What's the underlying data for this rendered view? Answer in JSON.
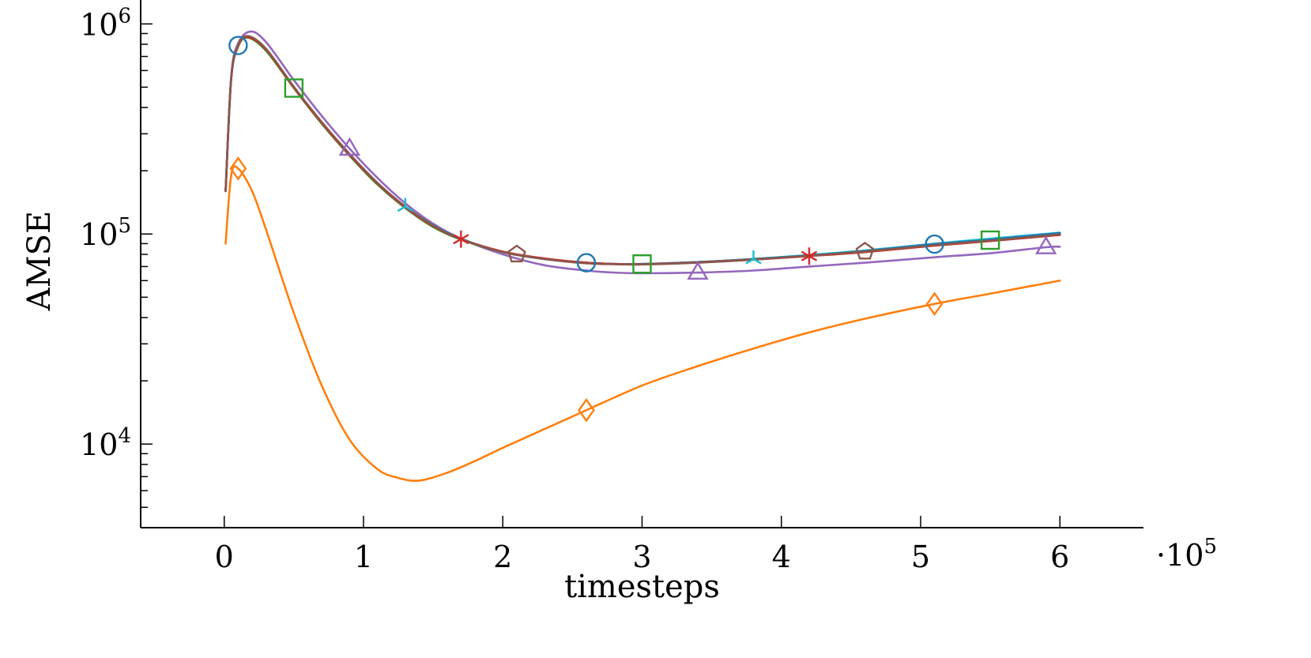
{
  "chart_data": {
    "type": "line",
    "xlabel": "timesteps",
    "ylabel": "AMSE",
    "x_multiplier_label": "·10",
    "x_multiplier_exponent": "5",
    "xscale": "linear",
    "yscale": "log",
    "xlim": [
      -0.6,
      6.6
    ],
    "ylim": [
      4000,
      1300000
    ],
    "grid": false,
    "legend": "none",
    "x_ticks": [
      {
        "value": 0,
        "label": "0"
      },
      {
        "value": 1,
        "label": "1"
      },
      {
        "value": 2,
        "label": "2"
      },
      {
        "value": 3,
        "label": "3"
      },
      {
        "value": 4,
        "label": "4"
      },
      {
        "value": 5,
        "label": "5"
      },
      {
        "value": 6,
        "label": "6"
      }
    ],
    "y_major_ticks": [
      {
        "value": 10000,
        "base": "10",
        "exp": "4"
      },
      {
        "value": 100000,
        "base": "10",
        "exp": "5"
      },
      {
        "value": 1000000,
        "base": "10",
        "exp": "6"
      }
    ],
    "y_minor_ticks": [
      5000,
      6000,
      7000,
      8000,
      9000,
      20000,
      30000,
      40000,
      50000,
      60000,
      70000,
      80000,
      90000,
      200000,
      300000,
      400000,
      500000,
      600000,
      700000,
      800000,
      900000
    ],
    "series": [
      {
        "color": "#1f77b4",
        "marker": "circle",
        "x": [
          0.01,
          0.05,
          0.1,
          0.17,
          0.3,
          0.5,
          0.7,
          0.9,
          1.1,
          1.3,
          1.5,
          1.7,
          2.0,
          2.3,
          2.6,
          2.8,
          3.0,
          3.4,
          3.8,
          4.2,
          4.6,
          5.1,
          5.5,
          6.0
        ],
        "y": [
          160000,
          550000,
          790000,
          870000,
          760000,
          500000,
          340000,
          240000,
          175000,
          135000,
          110000,
          95000,
          82000,
          76000,
          73000,
          72000,
          72000,
          73500,
          76000,
          79000,
          83000,
          89500,
          94000,
          101000
        ],
        "marker_x": [
          0.1,
          2.6,
          5.1
        ]
      },
      {
        "color": "#ff7f0e",
        "marker": "diamond",
        "x": [
          0.01,
          0.05,
          0.1,
          0.2,
          0.3,
          0.5,
          0.7,
          0.9,
          1.1,
          1.25,
          1.4,
          1.6,
          1.8,
          2.0,
          2.3,
          2.6,
          3.0,
          3.4,
          3.8,
          4.2,
          4.6,
          5.1,
          5.5,
          6.0
        ],
        "y": [
          90000,
          190000,
          205000,
          160000,
          105000,
          42000,
          19000,
          10500,
          7600,
          6900,
          6700,
          7300,
          8300,
          9600,
          11800,
          14500,
          19000,
          23500,
          28500,
          34000,
          39500,
          46500,
          52000,
          60000
        ],
        "marker_x": [
          0.1,
          2.6,
          5.1
        ]
      },
      {
        "color": "#2ca02c",
        "marker": "square",
        "x": [
          0.01,
          0.05,
          0.1,
          0.17,
          0.3,
          0.5,
          0.7,
          0.9,
          1.1,
          1.3,
          1.5,
          1.7,
          2.0,
          2.3,
          2.6,
          2.8,
          3.0,
          3.4,
          3.8,
          4.2,
          4.6,
          5.1,
          5.5,
          6.0
        ],
        "y": [
          160000,
          545000,
          780000,
          860000,
          745000,
          495000,
          335000,
          236000,
          172000,
          133000,
          108000,
          94000,
          82000,
          76000,
          73000,
          72000,
          72000,
          73500,
          76000,
          79000,
          83000,
          89000,
          93500,
          100000
        ],
        "marker_x": [
          0.5,
          3.0,
          5.5
        ]
      },
      {
        "color": "#9467bd",
        "marker": "triangle",
        "x": [
          0.01,
          0.05,
          0.1,
          0.19,
          0.3,
          0.5,
          0.7,
          0.9,
          1.1,
          1.3,
          1.5,
          1.7,
          2.0,
          2.3,
          2.6,
          2.8,
          3.0,
          3.4,
          3.8,
          4.2,
          4.6,
          5.1,
          5.5,
          5.9,
          6.0
        ],
        "y": [
          160000,
          560000,
          810000,
          920000,
          820000,
          540000,
          365000,
          255000,
          185000,
          140000,
          112000,
          95000,
          80000,
          71000,
          67000,
          65500,
          65000,
          65500,
          67000,
          70000,
          73000,
          77500,
          81000,
          86500,
          87000
        ],
        "marker_x": [
          0.9,
          3.4,
          5.9
        ]
      },
      {
        "color": "#17becf",
        "marker": "tri-star",
        "x": [
          0.01,
          0.05,
          0.1,
          0.17,
          0.3,
          0.5,
          0.7,
          0.9,
          1.1,
          1.3,
          1.5,
          1.7,
          2.0,
          2.3,
          2.6,
          2.8,
          3.0,
          3.4,
          3.8,
          4.2,
          4.6,
          5.1,
          5.5,
          6.0
        ],
        "y": [
          160000,
          550000,
          790000,
          870000,
          760000,
          500000,
          340000,
          240000,
          175000,
          135000,
          110000,
          95000,
          82000,
          76000,
          73000,
          72000,
          72000,
          73500,
          76000,
          79500,
          83500,
          90000,
          95000,
          101500
        ],
        "marker_x": [
          1.3,
          3.8
        ]
      },
      {
        "color": "#d62728",
        "marker": "asterisk",
        "x": [
          0.01,
          0.05,
          0.1,
          0.17,
          0.3,
          0.5,
          0.7,
          0.9,
          1.1,
          1.3,
          1.5,
          1.7,
          2.0,
          2.3,
          2.6,
          2.8,
          3.0,
          3.4,
          3.8,
          4.2,
          4.6,
          5.1,
          5.5,
          6.0
        ],
        "y": [
          160000,
          548000,
          785000,
          865000,
          755000,
          498000,
          338000,
          238000,
          174000,
          134000,
          109000,
          94500,
          82500,
          76500,
          73000,
          72000,
          71800,
          73200,
          75500,
          78500,
          82000,
          88000,
          92500,
          99000
        ],
        "marker_x": [
          1.7,
          4.2
        ]
      },
      {
        "color": "#8c564b",
        "marker": "pentagon",
        "x": [
          0.01,
          0.05,
          0.1,
          0.17,
          0.3,
          0.5,
          0.7,
          0.9,
          1.1,
          1.3,
          1.5,
          1.7,
          2.0,
          2.3,
          2.6,
          2.8,
          3.0,
          3.4,
          3.8,
          4.2,
          4.6,
          5.1,
          5.5,
          6.0
        ],
        "y": [
          160000,
          552000,
          792000,
          875000,
          762000,
          502000,
          341000,
          240500,
          175000,
          135000,
          109500,
          94500,
          82000,
          76000,
          72500,
          71800,
          71600,
          73000,
          75500,
          78800,
          82500,
          88500,
          93000,
          99500
        ],
        "marker_x": [
          2.1,
          4.6
        ]
      }
    ]
  }
}
